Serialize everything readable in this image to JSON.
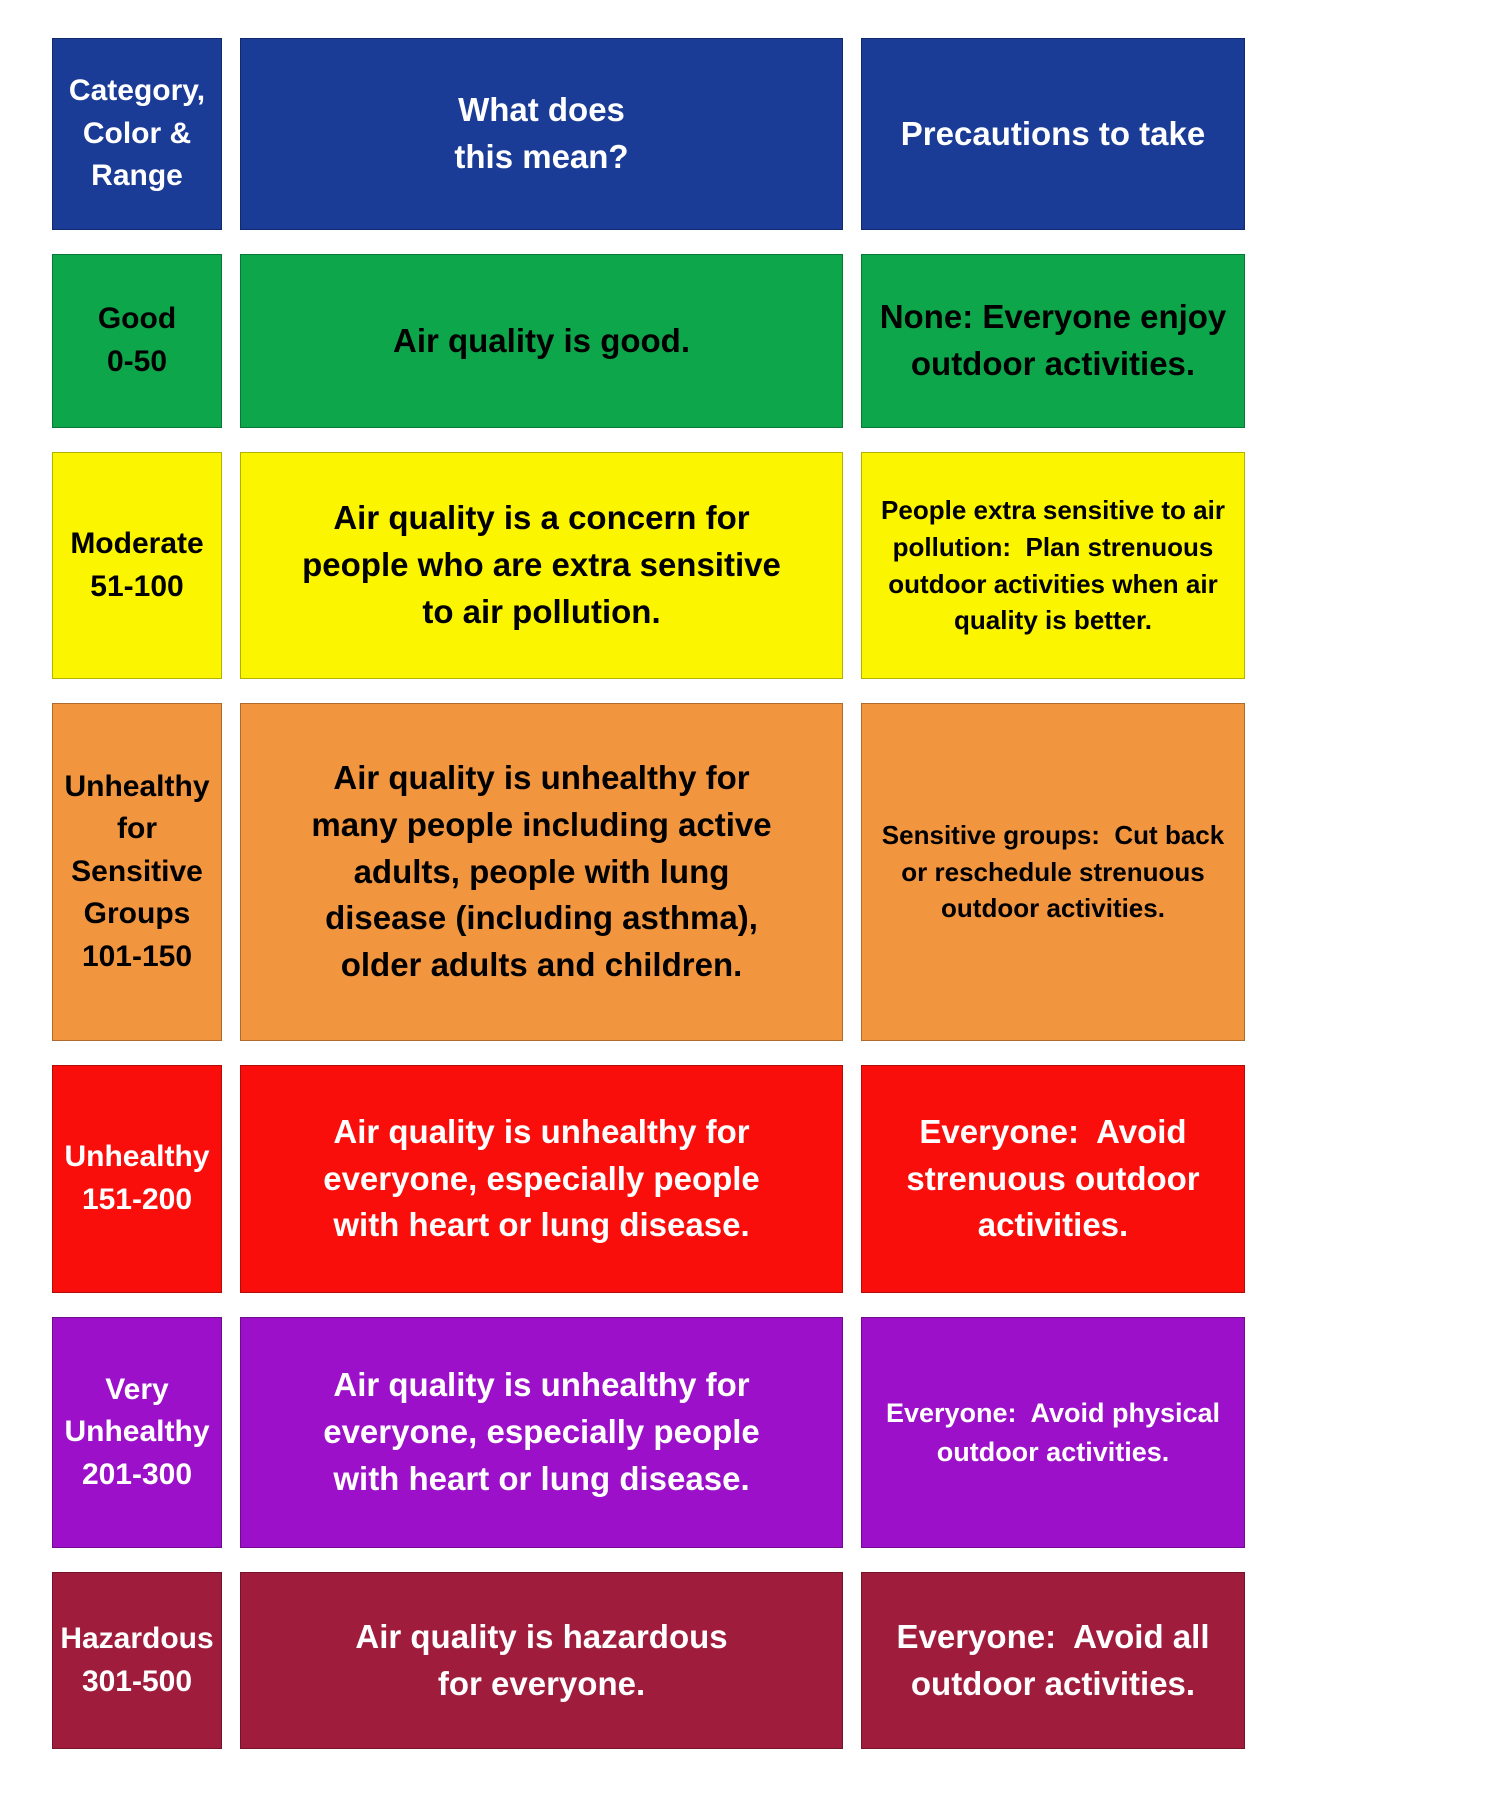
{
  "table": {
    "header_bg": "#1A3B96",
    "header_fg": "#FFFFFF",
    "header": {
      "category": "Category,\nColor &\nRange",
      "meaning": "What does\nthis mean?",
      "precautions": "Precautions to take"
    },
    "rows": [
      {
        "id": "good",
        "bg": "#0DA64A",
        "fg": "#000000",
        "label": "Good\n0-50",
        "meaning": "Air quality is good.",
        "precautions": "None: Everyone enjoy\noutdoor activities."
      },
      {
        "id": "moderate",
        "bg": "#FBF500",
        "fg": "#000000",
        "label": "Moderate\n51-100",
        "meaning": "Air quality is a concern for\npeople who are extra sensitive\nto air pollution.",
        "precautions": "People extra sensitive to air\npollution:  Plan strenuous\noutdoor activities when air\nquality is better."
      },
      {
        "id": "unhealthy-sensitive-groups",
        "bg": "#F2953F",
        "fg": "#000000",
        "label": "Unhealthy\nfor\nSensitive\nGroups\n101-150",
        "meaning": "Air quality is unhealthy for\nmany people including active\nadults, people with lung\ndisease (including asthma),\nolder adults and children.",
        "precautions": "Sensitive groups:  Cut back\nor reschedule strenuous\noutdoor activities."
      },
      {
        "id": "unhealthy",
        "bg": "#FA0E0C",
        "fg": "#FFFFFF",
        "label": "Unhealthy\n151-200",
        "meaning": "Air quality is unhealthy for\neveryone, especially people\nwith heart or lung disease.",
        "precautions": "Everyone:  Avoid\nstrenuous outdoor\nactivities."
      },
      {
        "id": "very-unhealthy",
        "bg": "#9B10C8",
        "fg": "#FFFFFF",
        "label": "Very\nUnhealthy\n201-300",
        "meaning": "Air quality is unhealthy for\neveryone, especially people\nwith heart or lung disease.",
        "precautions": "Everyone:  Avoid physical\noutdoor activities."
      },
      {
        "id": "hazardous",
        "bg": "#A01C3C",
        "fg": "#FFFFFF",
        "label": "Hazardous\n301-500",
        "meaning": "Air quality is hazardous\nfor everyone.",
        "precautions": "Everyone:  Avoid all\noutdoor activities."
      }
    ]
  }
}
